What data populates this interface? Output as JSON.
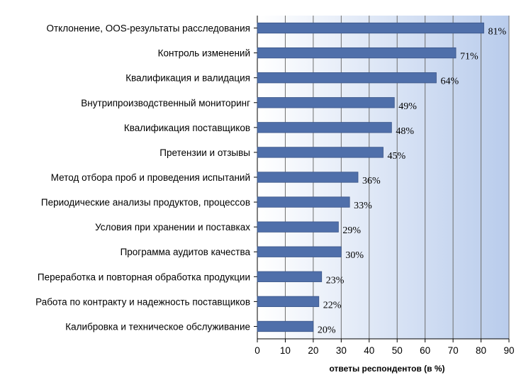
{
  "chart_data": {
    "type": "bar",
    "orientation": "horizontal",
    "categories": [
      "Отклонение, OOS-результаты расследования",
      "Контроль изменений",
      "Квалификация и валидация",
      "Внутрипроизводственный мониторинг",
      "Квалификация поставщиков",
      "Претензии и отзывы",
      "Метод отбора проб и проведения испытаний",
      "Периодические анализы продуктов, процессов",
      "Условия при хранении и поставках",
      "Программа аудитов качества",
      "Переработка и повторная обработка продукции",
      "Работа по контракту и надежность поставщиков",
      "Калибровка и техническое обслуживание"
    ],
    "values": [
      81,
      71,
      64,
      49,
      48,
      45,
      36,
      33,
      29,
      30,
      23,
      22,
      20
    ],
    "data_labels": [
      "81%",
      "71%",
      "64%",
      "49%",
      "48%",
      "45%",
      "36%",
      "33%",
      "29%",
      "30%",
      "23%",
      "22%",
      "20%"
    ],
    "xlabel": "ответы респондентов (в %)",
    "ylabel": "",
    "title": "",
    "xlim": [
      0,
      90
    ],
    "xticks": [
      "0",
      "10",
      "20",
      "30",
      "40",
      "50",
      "60",
      "70",
      "80",
      "90"
    ],
    "grid": true,
    "legend": "none",
    "colors": {
      "bar": "#4F6FAA",
      "bar_edge": "#3A5588",
      "plot_bg_light": "#FFFFFF",
      "plot_bg_dark": "#B9CCEC",
      "grid": "#6E6E6E"
    }
  }
}
